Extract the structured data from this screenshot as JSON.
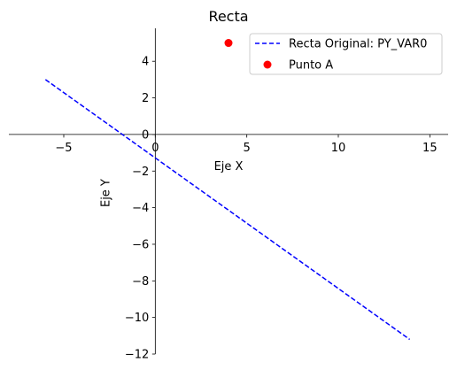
{
  "chart_data": {
    "type": "line",
    "title": "Recta",
    "xlabel": "Eje X",
    "ylabel": "Eje Y",
    "xlim": [
      -8,
      16
    ],
    "ylim": [
      -12,
      5.8
    ],
    "xticks": [
      -5,
      0,
      5,
      10,
      15
    ],
    "yticks": [
      -12,
      -10,
      -8,
      -6,
      -4,
      -2,
      0,
      2,
      4
    ],
    "grid": false,
    "legend_position": "top-right",
    "series": [
      {
        "name": "Recta Original: PY_VAR0",
        "kind": "line",
        "style": "dashed",
        "color": "#0000ff",
        "x": [
          -6,
          13.9
        ],
        "y": [
          3.0,
          -11.2
        ]
      },
      {
        "name": "Punto A",
        "kind": "scatter",
        "color": "#ff0000",
        "x": [
          4
        ],
        "y": [
          5
        ]
      }
    ]
  }
}
